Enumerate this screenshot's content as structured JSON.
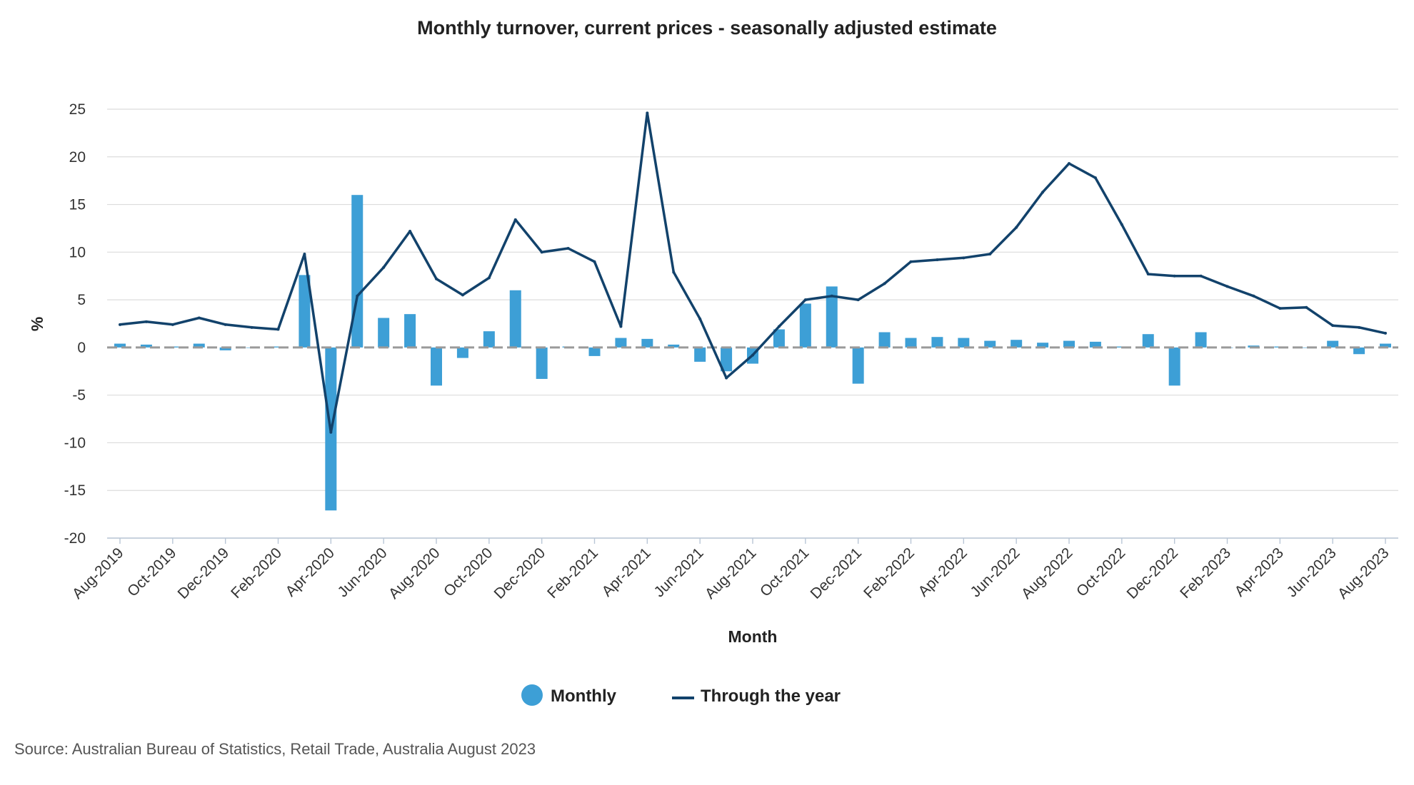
{
  "chart_data": {
    "type": "bar",
    "title": "Monthly turnover, current prices - seasonally adjusted estimate",
    "xlabel": "Month",
    "ylabel": "%",
    "ylim": [
      -20,
      25
    ],
    "yticks": [
      25,
      20,
      15,
      10,
      5,
      0,
      -5,
      -10,
      -15,
      -20
    ],
    "grid": true,
    "legend_position": "bottom",
    "source": "Source: Australian Bureau of Statistics, Retail Trade, Australia August 2023",
    "categories": [
      "Aug-2019",
      "Sep-2019",
      "Oct-2019",
      "Nov-2019",
      "Dec-2019",
      "Jan-2020",
      "Feb-2020",
      "Mar-2020",
      "Apr-2020",
      "May-2020",
      "Jun-2020",
      "Jul-2020",
      "Aug-2020",
      "Sep-2020",
      "Oct-2020",
      "Nov-2020",
      "Dec-2020",
      "Jan-2021",
      "Feb-2021",
      "Mar-2021",
      "Apr-2021",
      "May-2021",
      "Jun-2021",
      "Jul-2021",
      "Aug-2021",
      "Sep-2021",
      "Oct-2021",
      "Nov-2021",
      "Dec-2021",
      "Jan-2022",
      "Feb-2022",
      "Mar-2022",
      "Apr-2022",
      "May-2022",
      "Jun-2022",
      "Jul-2022",
      "Aug-2022",
      "Sep-2022",
      "Oct-2022",
      "Nov-2022",
      "Dec-2022",
      "Jan-2023",
      "Feb-2023",
      "Mar-2023",
      "Apr-2023",
      "May-2023",
      "Jun-2023",
      "Jul-2023",
      "Aug-2023"
    ],
    "x_tick_labels": [
      "Aug-2019",
      "Oct-2019",
      "Dec-2019",
      "Feb-2020",
      "Apr-2020",
      "Jun-2020",
      "Aug-2020",
      "Oct-2020",
      "Dec-2020",
      "Feb-2021",
      "Apr-2021",
      "Jun-2021",
      "Aug-2021",
      "Oct-2021",
      "Dec-2021",
      "Feb-2022",
      "Apr-2022",
      "Jun-2022",
      "Aug-2022",
      "Oct-2022",
      "Dec-2022",
      "Feb-2023",
      "Apr-2023",
      "Jun-2023",
      "Aug-2023"
    ],
    "series": [
      {
        "name": "Monthly",
        "type": "bar",
        "color": "#3d9fd6",
        "values": [
          0.4,
          0.3,
          0.1,
          0.4,
          -0.3,
          0.0,
          0.1,
          7.6,
          -17.1,
          16.0,
          3.1,
          3.5,
          -4.0,
          -1.1,
          1.7,
          6.0,
          -3.3,
          0.1,
          -0.9,
          1.0,
          0.9,
          0.3,
          -1.5,
          -2.5,
          -1.7,
          1.9,
          4.6,
          6.4,
          -3.8,
          1.6,
          1.0,
          1.1,
          1.0,
          0.7,
          0.8,
          0.5,
          0.7,
          0.6,
          0.1,
          1.4,
          -4.0,
          1.6,
          0.0,
          0.2,
          0.1,
          0.0,
          0.7,
          -0.7,
          0.4
        ]
      },
      {
        "name": "Through the year",
        "type": "line",
        "color": "#12426b",
        "values": [
          2.4,
          2.7,
          2.4,
          3.1,
          2.4,
          2.1,
          1.9,
          9.8,
          -8.9,
          5.4,
          8.4,
          12.2,
          7.2,
          5.5,
          7.3,
          13.4,
          10.0,
          10.4,
          9.0,
          2.2,
          24.6,
          7.9,
          3.0,
          -3.2,
          -0.8,
          2.2,
          5.0,
          5.4,
          5.0,
          6.7,
          9.0,
          9.2,
          9.4,
          9.8,
          12.6,
          16.3,
          19.3,
          17.8,
          12.9,
          7.7,
          7.5,
          7.5,
          6.4,
          5.4,
          4.1,
          4.2,
          2.3,
          2.1,
          1.5
        ]
      }
    ],
    "colors": {
      "bar": "#3d9fd6",
      "line": "#12426b",
      "zero_line": "#9a9a9a",
      "grid": "#dcdcdc"
    }
  }
}
